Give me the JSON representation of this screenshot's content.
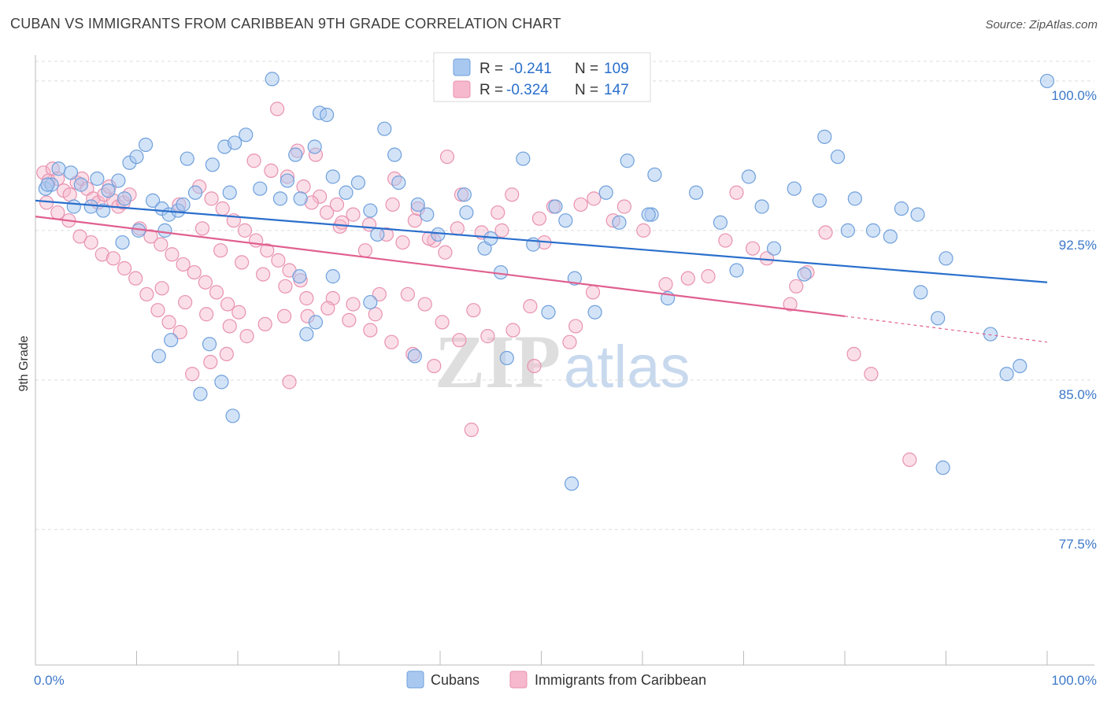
{
  "title": "CUBAN VS IMMIGRANTS FROM CARIBBEAN 9TH GRADE CORRELATION CHART",
  "source": "Source: ZipAtlas.com",
  "watermark": {
    "zip": "ZIP",
    "atlas": "atlas"
  },
  "legend_top": [
    {
      "r_label": "R =",
      "r_value": "-0.241",
      "n_label": "N =",
      "n_value": "109"
    },
    {
      "r_label": "R =",
      "r_value": "-0.324",
      "n_label": "N =",
      "n_value": "147"
    }
  ],
  "colors": {
    "blue_fill": "#a8c8f0",
    "blue_stroke": "#6fa0dc",
    "blue_line": "#2a6fcc",
    "pink_fill": "#f6b8cc",
    "pink_stroke": "#e892b0",
    "pink_line": "#e0608f",
    "tick_text": "#3d78c8",
    "grid": "#dcdcdc"
  },
  "chart_data": {
    "type": "scatter",
    "title": "CUBAN VS IMMIGRANTS FROM CARIBBEAN 9TH GRADE CORRELATION CHART",
    "xlabel": "",
    "ylabel": "9th Grade",
    "xlim": [
      0,
      100
    ],
    "ylim": [
      70.7,
      101.3
    ],
    "x_tick_labels": [
      "0.0%",
      "100.0%"
    ],
    "y_ticks": [
      77.5,
      85.0,
      92.5,
      100.0
    ],
    "y_tick_labels": [
      "77.5%",
      "85.0%",
      "92.5%",
      "100.0%"
    ],
    "grid": true,
    "legend_position": "top-center",
    "series": [
      {
        "name": "Cubans",
        "r": -0.241,
        "n": 109,
        "trend": {
          "x": [
            0,
            100
          ],
          "y": [
            94.0,
            89.9
          ]
        },
        "points": [
          [
            1,
            94.6
          ],
          [
            1.6,
            94.8
          ],
          [
            2.3,
            95.6
          ],
          [
            3.5,
            95.4
          ],
          [
            4.5,
            94.8
          ],
          [
            5.5,
            93.7
          ],
          [
            6.1,
            95.1
          ],
          [
            7.2,
            94.5
          ],
          [
            6.7,
            93.5
          ],
          [
            8.2,
            95.0
          ],
          [
            8.8,
            94.1
          ],
          [
            9.3,
            95.9
          ],
          [
            10,
            96.2
          ],
          [
            10.9,
            96.8
          ],
          [
            11.6,
            94.0
          ],
          [
            12.5,
            93.6
          ],
          [
            13.2,
            93.3
          ],
          [
            14.1,
            93.5
          ],
          [
            14.6,
            93.8
          ],
          [
            15,
            96.1
          ],
          [
            12.8,
            92.5
          ],
          [
            15.8,
            94.4
          ],
          [
            17.5,
            95.8
          ],
          [
            18.7,
            96.7
          ],
          [
            19.7,
            96.9
          ],
          [
            20.8,
            97.3
          ],
          [
            19.2,
            94.4
          ],
          [
            22.2,
            94.6
          ],
          [
            23.4,
            100.1
          ],
          [
            24.2,
            94.1
          ],
          [
            24.9,
            95.0
          ],
          [
            25.7,
            96.3
          ],
          [
            26.2,
            94.1
          ],
          [
            27.6,
            96.7
          ],
          [
            28.1,
            98.4
          ],
          [
            28.8,
            98.3
          ],
          [
            29.4,
            95.2
          ],
          [
            30.7,
            94.4
          ],
          [
            31.9,
            94.9
          ],
          [
            33.1,
            93.5
          ],
          [
            33.8,
            92.3
          ],
          [
            34.5,
            97.6
          ],
          [
            35.5,
            96.3
          ],
          [
            35.9,
            94.9
          ],
          [
            37.8,
            93.8
          ],
          [
            38.7,
            93.3
          ],
          [
            39.8,
            92.3
          ],
          [
            42.4,
            94.3
          ],
          [
            42.6,
            93.4
          ],
          [
            44.4,
            91.6
          ],
          [
            45,
            92.1
          ],
          [
            46,
            90.4
          ],
          [
            48.2,
            96.1
          ],
          [
            49.2,
            91.8
          ],
          [
            51.4,
            93.7
          ],
          [
            52.4,
            93.0
          ],
          [
            53.3,
            90.1
          ],
          [
            55.3,
            88.4
          ],
          [
            56.4,
            94.4
          ],
          [
            57.7,
            92.9
          ],
          [
            58.5,
            96.0
          ],
          [
            60.9,
            93.3
          ],
          [
            60.6,
            93.3
          ],
          [
            61.2,
            95.3
          ],
          [
            62.5,
            89.1
          ],
          [
            65.3,
            94.4
          ],
          [
            67.7,
            92.9
          ],
          [
            69.3,
            90.5
          ],
          [
            70.5,
            95.2
          ],
          [
            71.8,
            93.7
          ],
          [
            73,
            91.6
          ],
          [
            75,
            94.6
          ],
          [
            76,
            90.3
          ],
          [
            77.5,
            94.0
          ],
          [
            78,
            97.2
          ],
          [
            79.3,
            96.2
          ],
          [
            80.3,
            92.5
          ],
          [
            81,
            94.1
          ],
          [
            82.8,
            92.5
          ],
          [
            84.5,
            92.2
          ],
          [
            85.6,
            93.6
          ],
          [
            87.2,
            93.3
          ],
          [
            87.5,
            89.4
          ],
          [
            89.2,
            88.1
          ],
          [
            90,
            91.1
          ],
          [
            94.4,
            87.3
          ],
          [
            96,
            85.3
          ],
          [
            97.3,
            85.7
          ],
          [
            100,
            100.0
          ],
          [
            1.2,
            94.8
          ],
          [
            3.8,
            93.7
          ],
          [
            8.6,
            91.9
          ],
          [
            10.2,
            92.5
          ],
          [
            12.2,
            86.2
          ],
          [
            13.4,
            87.0
          ],
          [
            16.3,
            84.3
          ],
          [
            17.2,
            86.8
          ],
          [
            18.4,
            84.9
          ],
          [
            19.5,
            83.2
          ],
          [
            26.1,
            90.2
          ],
          [
            26.8,
            87.3
          ],
          [
            27.7,
            87.9
          ],
          [
            29.4,
            90.2
          ],
          [
            33.1,
            88.9
          ],
          [
            37.5,
            86.2
          ],
          [
            46.6,
            86.1
          ],
          [
            50.7,
            88.4
          ],
          [
            53,
            79.8
          ],
          [
            89.7,
            80.6
          ]
        ]
      },
      {
        "name": "Immigrants from Caribbean",
        "r": -0.324,
        "n": 147,
        "trend": {
          "x": [
            0,
            80
          ],
          "y": [
            93.2,
            88.2
          ]
        },
        "trend_dashed": {
          "x": [
            80,
            100
          ],
          "y": [
            88.2,
            86.9
          ]
        },
        "points": [
          [
            0.8,
            95.4
          ],
          [
            1.3,
            95.0
          ],
          [
            1.7,
            95.6
          ],
          [
            2.2,
            95.1
          ],
          [
            2.8,
            94.5
          ],
          [
            3.4,
            94.3
          ],
          [
            4.1,
            94.9
          ],
          [
            4.6,
            95.1
          ],
          [
            5.1,
            94.6
          ],
          [
            5.7,
            94.1
          ],
          [
            6.2,
            93.9
          ],
          [
            6.8,
            94.3
          ],
          [
            7.3,
            94.7
          ],
          [
            7.7,
            94.0
          ],
          [
            8.2,
            93.7
          ],
          [
            8.7,
            93.9
          ],
          [
            9.3,
            94.3
          ],
          [
            1.1,
            93.9
          ],
          [
            2.2,
            93.4
          ],
          [
            3.3,
            93.0
          ],
          [
            4.4,
            92.2
          ],
          [
            5.5,
            91.9
          ],
          [
            6.6,
            91.3
          ],
          [
            7.7,
            91.1
          ],
          [
            8.8,
            90.6
          ],
          [
            9.9,
            90.1
          ],
          [
            11,
            89.3
          ],
          [
            12.1,
            88.5
          ],
          [
            13.2,
            87.9
          ],
          [
            14.3,
            87.4
          ],
          [
            10.3,
            92.6
          ],
          [
            11.4,
            92.2
          ],
          [
            12.4,
            91.8
          ],
          [
            13.5,
            91.3
          ],
          [
            14.6,
            90.8
          ],
          [
            15.7,
            90.4
          ],
          [
            16.8,
            89.9
          ],
          [
            17.9,
            89.4
          ],
          [
            19,
            88.8
          ],
          [
            20.1,
            88.4
          ],
          [
            16.2,
            94.7
          ],
          [
            17.4,
            94.1
          ],
          [
            18.5,
            93.6
          ],
          [
            19.6,
            93.0
          ],
          [
            20.7,
            92.5
          ],
          [
            21.8,
            92.0
          ],
          [
            22.9,
            91.5
          ],
          [
            24,
            91.0
          ],
          [
            25.1,
            90.5
          ],
          [
            26.2,
            90.0
          ],
          [
            21.6,
            96.0
          ],
          [
            23.3,
            95.5
          ],
          [
            24.9,
            95.2
          ],
          [
            26.5,
            94.7
          ],
          [
            28.1,
            94.2
          ],
          [
            29.8,
            93.8
          ],
          [
            31.4,
            93.3
          ],
          [
            33,
            92.8
          ],
          [
            34.7,
            92.3
          ],
          [
            36.3,
            91.9
          ],
          [
            23.9,
            98.6
          ],
          [
            25.9,
            96.5
          ],
          [
            27.7,
            96.3
          ],
          [
            30.1,
            92.7
          ],
          [
            32.6,
            91.5
          ],
          [
            35.3,
            93.8
          ],
          [
            37.5,
            93.0
          ],
          [
            39.4,
            92.0
          ],
          [
            41.7,
            92.6
          ],
          [
            44.1,
            92.4
          ],
          [
            45.7,
            93.4
          ],
          [
            47.1,
            94.3
          ],
          [
            49.8,
            93.1
          ],
          [
            51.2,
            93.7
          ],
          [
            53.9,
            93.8
          ],
          [
            55.2,
            94.1
          ],
          [
            58.2,
            93.7
          ],
          [
            57.1,
            93.0
          ],
          [
            60.1,
            92.5
          ],
          [
            62.3,
            89.8
          ],
          [
            64.5,
            90.1
          ],
          [
            66.5,
            90.2
          ],
          [
            68.2,
            92.0
          ],
          [
            69.3,
            94.4
          ],
          [
            70.9,
            91.6
          ],
          [
            72.3,
            91.1
          ],
          [
            74.6,
            88.8
          ],
          [
            75.2,
            89.7
          ],
          [
            76.3,
            90.4
          ],
          [
            78.1,
            92.4
          ],
          [
            80.9,
            86.3
          ],
          [
            82.6,
            85.3
          ],
          [
            86.4,
            81.0
          ],
          [
            55.1,
            89.4
          ],
          [
            43.3,
            88.5
          ],
          [
            44.7,
            87.2
          ],
          [
            49.3,
            85.7
          ],
          [
            43.1,
            82.5
          ],
          [
            35.5,
            95.1
          ],
          [
            37.8,
            93.6
          ],
          [
            40.7,
            96.2
          ],
          [
            42.1,
            94.3
          ],
          [
            46.1,
            92.5
          ],
          [
            50.3,
            91.9
          ],
          [
            34,
            89.3
          ],
          [
            31.4,
            88.8
          ],
          [
            29.4,
            89.1
          ],
          [
            26.9,
            88.2
          ],
          [
            24.6,
            88.2
          ],
          [
            22.7,
            87.8
          ],
          [
            20.9,
            87.2
          ],
          [
            18.9,
            86.3
          ],
          [
            17.3,
            85.9
          ],
          [
            15.5,
            85.3
          ],
          [
            25.1,
            84.9
          ],
          [
            33.6,
            88.3
          ],
          [
            36.8,
            89.3
          ],
          [
            38.5,
            88.8
          ],
          [
            40.2,
            87.9
          ],
          [
            41.9,
            87.0
          ],
          [
            56.8,
            100.0
          ],
          [
            53.4,
            87.7
          ],
          [
            52.8,
            86.9
          ],
          [
            48.9,
            88.7
          ],
          [
            47.2,
            87.5
          ],
          [
            27.3,
            93.9
          ],
          [
            28.8,
            93.4
          ],
          [
            30.3,
            92.9
          ],
          [
            38.9,
            92.1
          ],
          [
            40.5,
            91.4
          ],
          [
            14.2,
            93.8
          ],
          [
            16.5,
            92.6
          ],
          [
            18.3,
            91.5
          ],
          [
            20.4,
            90.9
          ],
          [
            22.5,
            90.3
          ],
          [
            24.7,
            89.7
          ],
          [
            26.8,
            89.1
          ],
          [
            28.9,
            88.6
          ],
          [
            31,
            88.0
          ],
          [
            33.1,
            87.5
          ],
          [
            35.2,
            86.9
          ],
          [
            37.3,
            86.3
          ],
          [
            39.4,
            85.7
          ],
          [
            12.5,
            89.6
          ],
          [
            14.8,
            88.9
          ],
          [
            16.9,
            88.3
          ],
          [
            19.2,
            87.7
          ]
        ]
      }
    ]
  },
  "bottom_legend": [
    {
      "label": "Cubans"
    },
    {
      "label": "Immigrants from Caribbean"
    }
  ]
}
